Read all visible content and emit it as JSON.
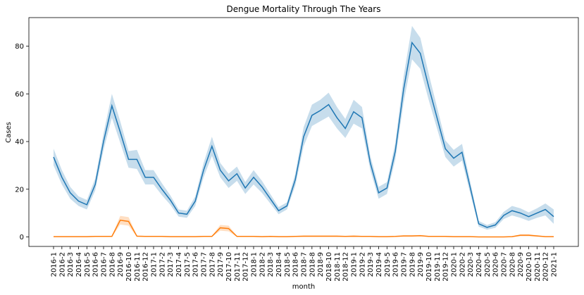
{
  "chart_data": {
    "type": "line",
    "title": "Dengue Mortality Through The Years",
    "xlabel": "month",
    "ylabel": "Cases",
    "ylim": [
      -4,
      92
    ],
    "yticks": [
      0,
      20,
      40,
      60,
      80
    ],
    "grid": false,
    "legend": "none",
    "categories": [
      "2016-1",
      "2016-2",
      "2016-3",
      "2016-4",
      "2016-5",
      "2016-6",
      "2016-7",
      "2016-8",
      "2016-9",
      "2016-10",
      "2016-11",
      "2016-12",
      "2017-1",
      "2017-2",
      "2017-3",
      "2017-4",
      "2017-5",
      "2017-6",
      "2017-7",
      "2017-8",
      "2017-9",
      "2017-10",
      "2017-11",
      "2017-12",
      "2018-1",
      "2018-2",
      "2018-3",
      "2018-4",
      "2018-5",
      "2018-6",
      "2018-7",
      "2018-8",
      "2018-9",
      "2018-10",
      "2018-11",
      "2018-12",
      "2019-1",
      "2019-2",
      "2019-3",
      "2019-4",
      "2019-5",
      "2019-6",
      "2019-7",
      "2019-8",
      "2019-9",
      "2019-10",
      "2019-11",
      "2019-12",
      "2020-1",
      "2020-2",
      "2020-3",
      "2020-4",
      "2020-5",
      "2020-6",
      "2020-7",
      "2020-8",
      "2020-9",
      "2020-10",
      "2020-11",
      "2020-12",
      "2021-1"
    ],
    "series": [
      {
        "color": "#1f77b4",
        "values": [
          33.5,
          25,
          18.5,
          15,
          13.5,
          22,
          40,
          55,
          44,
          32.5,
          32.5,
          25,
          25,
          20,
          15.5,
          10,
          9.5,
          15,
          28,
          38,
          28,
          23.5,
          26.5,
          20.5,
          25,
          21,
          16,
          11,
          13,
          24,
          42,
          51,
          53,
          55.5,
          50,
          45.5,
          52.5,
          50,
          31,
          18.5,
          20.5,
          36,
          62,
          81.5,
          77,
          63,
          50,
          37,
          33,
          35.5,
          20.5,
          5.5,
          4,
          5,
          9,
          11,
          10,
          8.5,
          10,
          11.5,
          8.5
        ],
        "ci_half": [
          3.5,
          3,
          2.5,
          2,
          2,
          2.5,
          3.5,
          5,
          4.5,
          3.5,
          4,
          3,
          3,
          2.5,
          2,
          1.5,
          1.5,
          2,
          3,
          4,
          3,
          3,
          3,
          2.5,
          3,
          2.5,
          2,
          1.5,
          1.5,
          2.5,
          4,
          4.5,
          4.5,
          5,
          4.5,
          4,
          5,
          4.5,
          3,
          2.5,
          2.5,
          3.5,
          5.5,
          7,
          6.5,
          5.5,
          4.5,
          3.5,
          3.5,
          3.5,
          2.5,
          1.2,
          1,
          1.2,
          1.5,
          2,
          2,
          1.8,
          2,
          2.5,
          3
        ]
      },
      {
        "color": "#ff7f0e",
        "values": [
          0.1,
          0.1,
          0.1,
          0.1,
          0.1,
          0.2,
          0.2,
          0.2,
          7,
          6.5,
          0.3,
          0.2,
          0.2,
          0.2,
          0.1,
          0.1,
          0.1,
          0.1,
          0.2,
          0.2,
          3.8,
          3.5,
          0.2,
          0.2,
          0.2,
          0.1,
          0.2,
          0.1,
          0.1,
          0.2,
          0.3,
          0.3,
          0.3,
          0.3,
          0.3,
          0.2,
          0.3,
          0.2,
          0.2,
          0.1,
          0.1,
          0.2,
          0.4,
          0.4,
          0.5,
          0.2,
          0.2,
          0.2,
          0.1,
          0.1,
          0.1,
          0,
          0,
          0,
          0,
          0.1,
          0.7,
          0.7,
          0.4,
          0.1,
          0.1
        ],
        "ci_half": [
          0.2,
          0.2,
          0.2,
          0.2,
          0.2,
          0.2,
          0.2,
          0.2,
          1.8,
          1.8,
          0.3,
          0.2,
          0.2,
          0.2,
          0.2,
          0.2,
          0.2,
          0.2,
          0.2,
          0.2,
          1.2,
          1.2,
          0.2,
          0.2,
          0.2,
          0.2,
          0.2,
          0.2,
          0.2,
          0.2,
          0.3,
          0.3,
          0.3,
          0.3,
          0.3,
          0.2,
          0.3,
          0.2,
          0.2,
          0.2,
          0.2,
          0.2,
          0.3,
          0.3,
          0.3,
          0.2,
          0.2,
          0.2,
          0.2,
          0.2,
          0.2,
          0.1,
          0.1,
          0.1,
          0.1,
          0.2,
          0.4,
          0.4,
          0.3,
          0.2,
          0.2
        ]
      }
    ]
  }
}
